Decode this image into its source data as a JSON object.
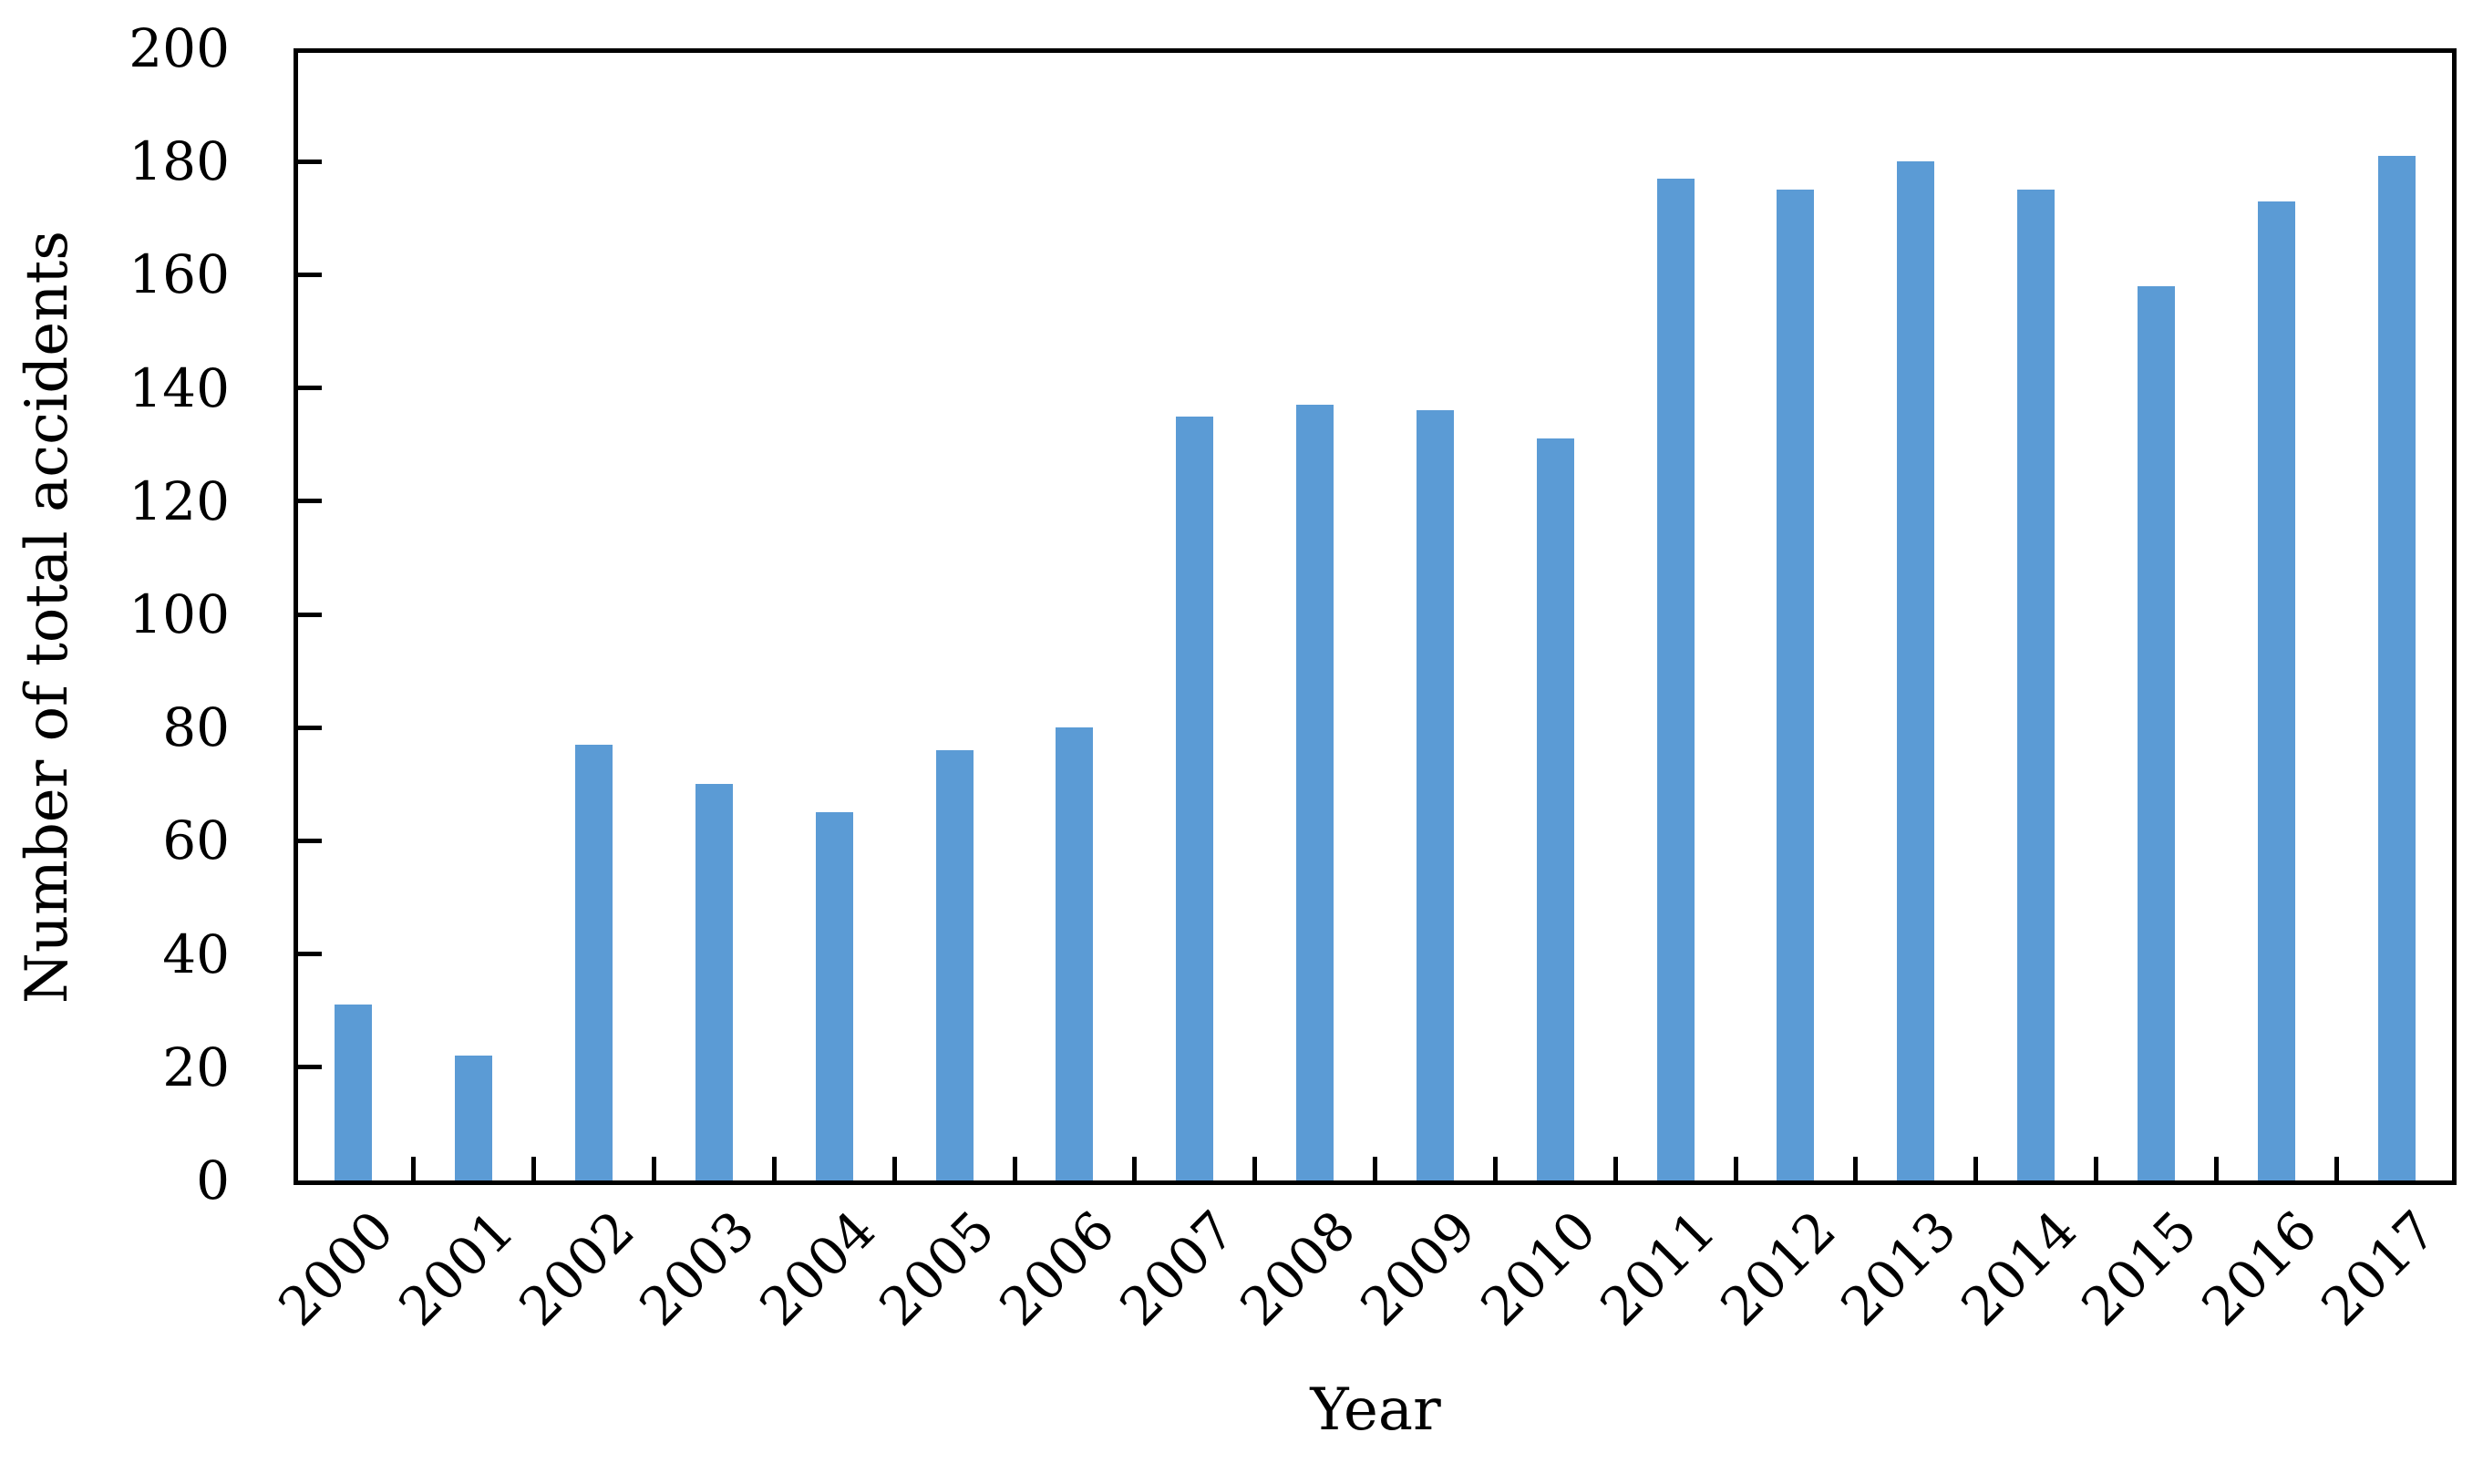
{
  "chart_data": {
    "type": "bar",
    "title": "",
    "xlabel": "Year",
    "ylabel": "Number of total accidents",
    "categories": [
      "2000",
      "2001",
      "2002",
      "2003",
      "2004",
      "2005",
      "2006",
      "2007",
      "2008",
      "2009",
      "2010",
      "2011",
      "2012",
      "2013",
      "2014",
      "2015",
      "2016",
      "2017"
    ],
    "values": [
      31,
      22,
      77,
      70,
      65,
      76,
      80,
      135,
      137,
      136,
      131,
      177,
      175,
      180,
      175,
      158,
      173,
      181
    ],
    "series": [
      {
        "name": "Number of total accidents",
        "values": [
          31,
          22,
          77,
          70,
          65,
          76,
          80,
          135,
          137,
          136,
          131,
          177,
          175,
          180,
          175,
          158,
          173,
          181
        ]
      }
    ],
    "ylim": [
      0,
      200
    ],
    "yticks": [
      0,
      20,
      40,
      60,
      80,
      100,
      120,
      140,
      160,
      180,
      200
    ],
    "xtick_label_rotation_deg": 45,
    "grid": false,
    "legend_position": "none",
    "tick_direction": "inside",
    "bar_color": "#5B9BD5",
    "axis_color": "#000000",
    "background_color": "#FFFFFF"
  }
}
